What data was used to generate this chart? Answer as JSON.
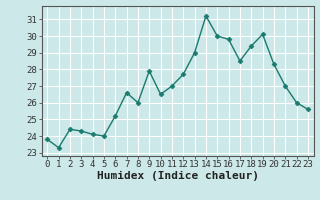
{
  "x": [
    0,
    1,
    2,
    3,
    4,
    5,
    6,
    7,
    8,
    9,
    10,
    11,
    12,
    13,
    14,
    15,
    16,
    17,
    18,
    19,
    20,
    21,
    22,
    23
  ],
  "y": [
    23.8,
    23.3,
    24.4,
    24.3,
    24.1,
    24.0,
    25.2,
    26.6,
    26.0,
    27.9,
    26.5,
    27.0,
    27.7,
    29.0,
    31.2,
    30.0,
    29.8,
    28.5,
    29.4,
    30.1,
    28.3,
    27.0,
    26.0,
    25.6
  ],
  "line_color": "#1a7a6e",
  "marker": "D",
  "marker_size": 2.5,
  "bg_color": "#cce8e8",
  "grid_color": "#ffffff",
  "plot_bg": "#cce8e8",
  "grid_minor_color": "#ddf0f0",
  "xlabel": "Humidex (Indice chaleur)",
  "ylim": [
    22.8,
    31.8
  ],
  "xlim": [
    -0.5,
    23.5
  ],
  "yticks": [
    23,
    24,
    25,
    26,
    27,
    28,
    29,
    30,
    31
  ],
  "xticks": [
    0,
    1,
    2,
    3,
    4,
    5,
    6,
    7,
    8,
    9,
    10,
    11,
    12,
    13,
    14,
    15,
    16,
    17,
    18,
    19,
    20,
    21,
    22,
    23
  ],
  "tick_label_size": 6.5,
  "xlabel_size": 8,
  "line_width": 1.0,
  "spine_color": "#555555"
}
